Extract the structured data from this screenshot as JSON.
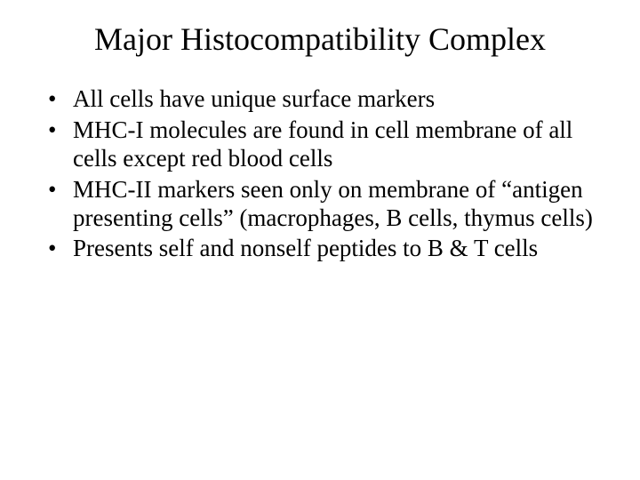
{
  "slide": {
    "title": "Major Histocompatibility Complex",
    "bullets": [
      "All cells have unique surface markers",
      "MHC-I molecules are found in cell membrane of all cells except red blood cells",
      "MHC-II markers seen only on membrane of “antigen presenting cells” (macrophages, B cells, thymus cells)",
      "Presents self and nonself peptides to B & T cells"
    ]
  },
  "styling": {
    "background_color": "#ffffff",
    "text_color": "#000000",
    "font_family": "Times New Roman",
    "title_fontsize": 36,
    "title_fontweight": "normal",
    "body_fontsize": 27,
    "bullet_marker": "•",
    "slide_width": 720,
    "slide_height": 540
  }
}
